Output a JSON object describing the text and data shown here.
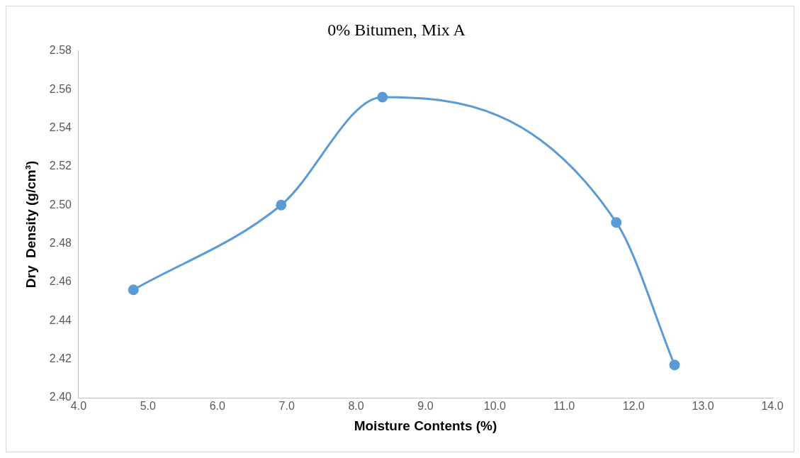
{
  "chart_data": {
    "type": "line",
    "title": "0% Bitumen, Mix A",
    "xlabel": "Moisture Contents (%)",
    "ylabel": "Dry  Density (g/cm³)",
    "x": [
      4.79,
      6.92,
      8.38,
      11.75,
      12.59
    ],
    "series": [
      {
        "color": "#5b9bd5",
        "values": [
          2.456,
          2.5,
          2.556,
          2.491,
          2.417
        ]
      }
    ],
    "xlim": [
      4,
      14
    ],
    "xticks": [
      {
        "value": 4,
        "label": "4.0"
      },
      {
        "value": 5,
        "label": "5.0"
      },
      {
        "value": 6,
        "label": "6.0"
      },
      {
        "value": 7,
        "label": "7.0"
      },
      {
        "value": 8,
        "label": "8.0"
      },
      {
        "value": 9,
        "label": "9.0"
      },
      {
        "value": 10,
        "label": "10.0"
      },
      {
        "value": 11,
        "label": "11.0"
      },
      {
        "value": 12,
        "label": "12.0"
      },
      {
        "value": 13,
        "label": "13.0"
      },
      {
        "value": 14,
        "label": "14.0"
      }
    ],
    "ylim": [
      2.4,
      2.58
    ],
    "yticks": [
      {
        "value": 2.4,
        "label": "2.40"
      },
      {
        "value": 2.42,
        "label": "2.42"
      },
      {
        "value": 2.44,
        "label": "2.44"
      },
      {
        "value": 2.46,
        "label": "2.46"
      },
      {
        "value": 2.48,
        "label": "2.48"
      },
      {
        "value": 2.5,
        "label": "2.50"
      },
      {
        "value": 2.52,
        "label": "2.52"
      },
      {
        "value": 2.54,
        "label": "2.54"
      },
      {
        "value": 2.56,
        "label": "2.56"
      },
      {
        "value": 2.58,
        "label": "2.58"
      }
    ],
    "grid": false,
    "legend": false,
    "marker": "circle",
    "line_style": "solid"
  }
}
